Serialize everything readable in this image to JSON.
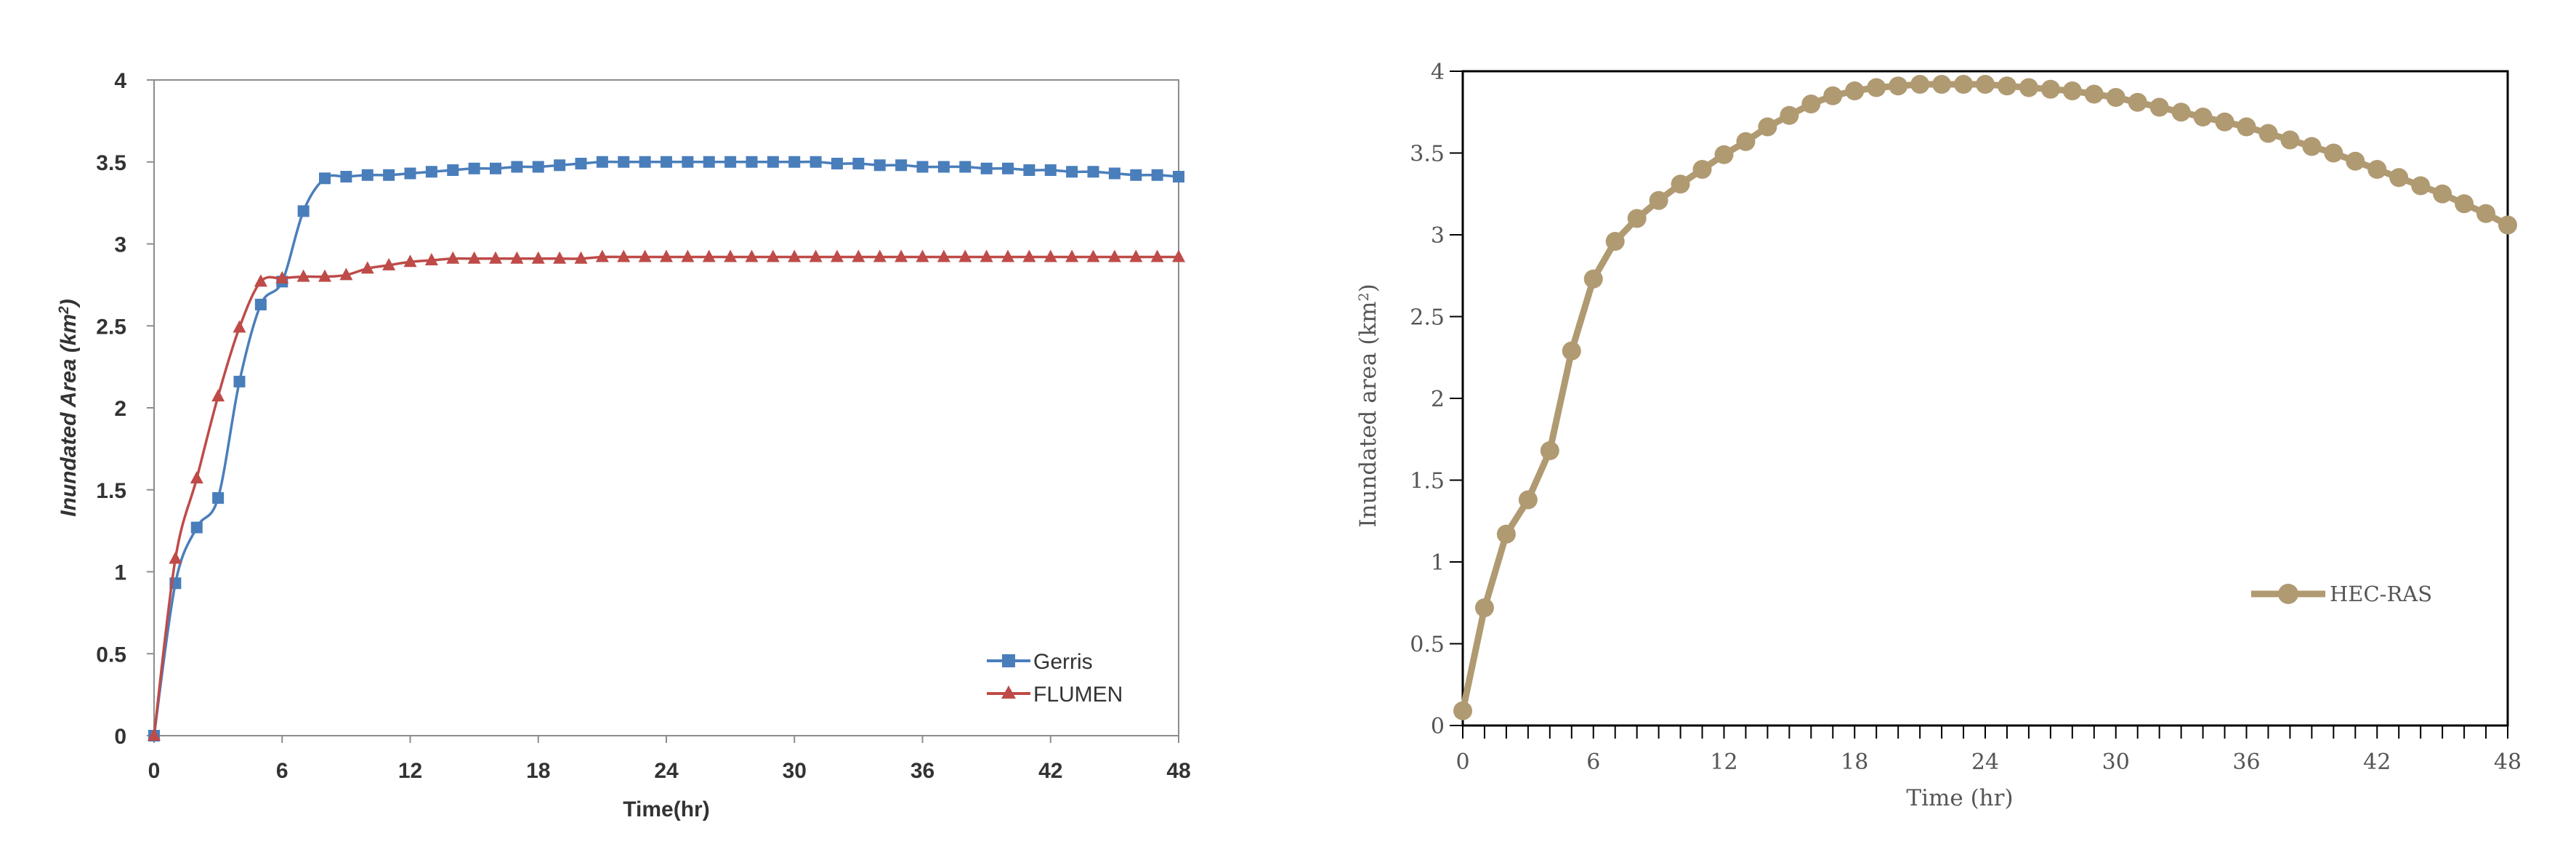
{
  "chart_data": [
    {
      "type": "line",
      "title": "",
      "xlabel": "Time(hr)",
      "ylabel": "Inundated Area (km²)",
      "ylabel_main": "Inundated Area (",
      "ylabel_unit": "km",
      "ylabel_sup": "2",
      "ylabel_close": ")",
      "xlim": [
        0,
        48
      ],
      "ylim": [
        0,
        4
      ],
      "xticks": [
        "0",
        "6",
        "12",
        "18",
        "24",
        "30",
        "36",
        "42",
        "48"
      ],
      "yticks": [
        "0",
        "0.5",
        "1",
        "1.5",
        "2",
        "2.5",
        "3",
        "3.5",
        "4"
      ],
      "grid": false,
      "legend_position": "bottom-right",
      "series": [
        {
          "name": "Gerris",
          "color": "#4a7ebb",
          "marker": "square",
          "x": [
            0,
            1,
            2,
            3,
            4,
            5,
            6,
            7,
            8,
            9,
            10,
            11,
            12,
            13,
            14,
            15,
            16,
            17,
            18,
            19,
            20,
            21,
            22,
            23,
            24,
            25,
            26,
            27,
            28,
            29,
            30,
            31,
            32,
            33,
            34,
            35,
            36,
            37,
            38,
            39,
            40,
            41,
            42,
            43,
            44,
            45,
            46,
            47,
            48
          ],
          "y": [
            0,
            0.93,
            1.27,
            1.45,
            2.16,
            2.63,
            2.77,
            3.2,
            3.4,
            3.41,
            3.42,
            3.42,
            3.43,
            3.44,
            3.45,
            3.46,
            3.46,
            3.47,
            3.47,
            3.48,
            3.49,
            3.5,
            3.5,
            3.5,
            3.5,
            3.5,
            3.5,
            3.5,
            3.5,
            3.5,
            3.5,
            3.5,
            3.49,
            3.49,
            3.48,
            3.48,
            3.47,
            3.47,
            3.47,
            3.46,
            3.46,
            3.45,
            3.45,
            3.44,
            3.44,
            3.43,
            3.42,
            3.42,
            3.41
          ]
        },
        {
          "name": "FLUMEN",
          "color": "#be4b48",
          "marker": "triangle",
          "x": [
            0,
            1,
            2,
            3,
            4,
            5,
            6,
            7,
            8,
            9,
            10,
            11,
            12,
            13,
            14,
            15,
            16,
            17,
            18,
            19,
            20,
            21,
            22,
            23,
            24,
            25,
            26,
            27,
            28,
            29,
            30,
            31,
            32,
            33,
            34,
            35,
            36,
            37,
            38,
            39,
            40,
            41,
            42,
            43,
            44,
            45,
            46,
            47,
            48
          ],
          "y": [
            0,
            1.08,
            1.57,
            2.07,
            2.49,
            2.77,
            2.79,
            2.8,
            2.8,
            2.81,
            2.85,
            2.87,
            2.89,
            2.9,
            2.91,
            2.91,
            2.91,
            2.91,
            2.91,
            2.91,
            2.91,
            2.92,
            2.92,
            2.92,
            2.92,
            2.92,
            2.92,
            2.92,
            2.92,
            2.92,
            2.92,
            2.92,
            2.92,
            2.92,
            2.92,
            2.92,
            2.92,
            2.92,
            2.92,
            2.92,
            2.92,
            2.92,
            2.92,
            2.92,
            2.92,
            2.92,
            2.92,
            2.92,
            2.92
          ]
        }
      ]
    },
    {
      "type": "line",
      "title": "",
      "xlabel": "Time (hr)",
      "ylabel": "Inundated area (km²)",
      "ylabel_main": "Inundated area (km",
      "ylabel_sup": "2",
      "ylabel_close": ")",
      "xlim": [
        0,
        48
      ],
      "ylim": [
        0,
        4
      ],
      "xticks": [
        "0",
        "6",
        "12",
        "18",
        "24",
        "30",
        "36",
        "42",
        "48"
      ],
      "yticks": [
        "0",
        "0.5",
        "1",
        "1.5",
        "2",
        "2.5",
        "3",
        "3.5",
        "4"
      ],
      "grid": false,
      "legend_position": "bottom-right",
      "series": [
        {
          "name": "HEC-RAS",
          "color": "#b09a72",
          "marker": "circle",
          "x": [
            0,
            1,
            2,
            3,
            4,
            5,
            6,
            7,
            8,
            9,
            10,
            11,
            12,
            13,
            14,
            15,
            16,
            17,
            18,
            19,
            20,
            21,
            22,
            23,
            24,
            25,
            26,
            27,
            28,
            29,
            30,
            31,
            32,
            33,
            34,
            35,
            36,
            37,
            38,
            39,
            40,
            41,
            42,
            43,
            44,
            45,
            46,
            47,
            48
          ],
          "y": [
            0.09,
            0.72,
            1.17,
            1.38,
            1.68,
            2.29,
            2.73,
            2.96,
            3.1,
            3.21,
            3.31,
            3.4,
            3.49,
            3.57,
            3.66,
            3.73,
            3.8,
            3.85,
            3.88,
            3.9,
            3.91,
            3.92,
            3.92,
            3.92,
            3.92,
            3.91,
            3.9,
            3.89,
            3.88,
            3.86,
            3.84,
            3.81,
            3.78,
            3.75,
            3.72,
            3.69,
            3.66,
            3.62,
            3.58,
            3.54,
            3.5,
            3.45,
            3.4,
            3.35,
            3.3,
            3.25,
            3.19,
            3.13,
            3.06
          ]
        }
      ]
    }
  ]
}
